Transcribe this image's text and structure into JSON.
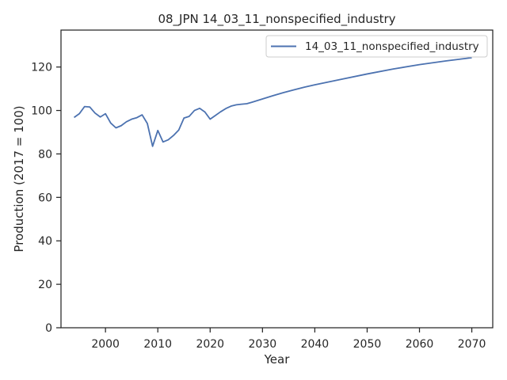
{
  "chart_data": {
    "type": "line",
    "title": "08_JPN 14_03_11_nonspecified_industry",
    "xlabel": "Year",
    "ylabel": "Production (2017 = 100)",
    "xlim": [
      1991.5,
      2074
    ],
    "ylim": [
      0,
      137
    ],
    "xticks": [
      2000,
      2010,
      2020,
      2030,
      2040,
      2050,
      2060,
      2070
    ],
    "yticks": [
      0,
      20,
      40,
      60,
      80,
      100,
      120
    ],
    "grid": false,
    "legend_position": "top-right",
    "colors": {
      "series": "#4c72b0",
      "axes": "#262626"
    },
    "series": [
      {
        "name": "14_03_11_nonspecified_industry",
        "x": [
          1994,
          1995,
          1996,
          1997,
          1998,
          1999,
          2000,
          2001,
          2002,
          2003,
          2004,
          2005,
          2006,
          2007,
          2008,
          2009,
          2010,
          2011,
          2012,
          2013,
          2014,
          2015,
          2016,
          2017,
          2018,
          2019,
          2020,
          2021,
          2022,
          2023,
          2024,
          2025,
          2026,
          2027,
          2028,
          2030,
          2032,
          2034,
          2036,
          2038,
          2040,
          2042,
          2045,
          2050,
          2055,
          2060,
          2065,
          2070
        ],
        "y": [
          96.8,
          98.5,
          101.8,
          101.6,
          98.8,
          97,
          98.5,
          94.2,
          92,
          93,
          94.8,
          96,
          96.7,
          98,
          94,
          83.5,
          90.8,
          85.5,
          86.5,
          88.5,
          91,
          96.5,
          97.3,
          100,
          101,
          99.3,
          96,
          97.7,
          99.4,
          100.9,
          102,
          102.6,
          102.9,
          103.1,
          103.8,
          105.3,
          106.8,
          108.2,
          109.5,
          110.7,
          111.8,
          112.8,
          114.3,
          116.8,
          119.1,
          121.1,
          122.8,
          124.3
        ]
      }
    ]
  }
}
